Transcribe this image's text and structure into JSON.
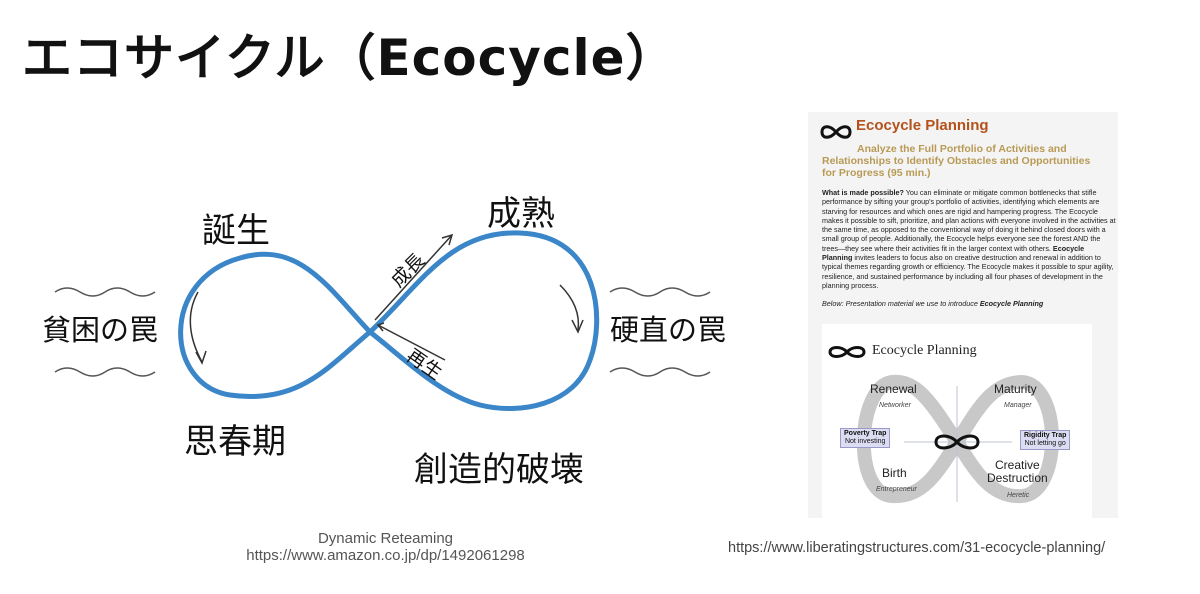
{
  "slide": {
    "title": "エコサイクル（Ecocycle）"
  },
  "diagram": {
    "loop_color": "#3a86c8",
    "labels": {
      "birth": "誕生",
      "maturity": "成熟",
      "poverty_trap": "貧困の罠",
      "rigidity_trap": "硬直の罠",
      "adolescence": "思春期",
      "creative_destruction": "創造的破壊",
      "growth": "成長",
      "renewal": "再生"
    },
    "source": {
      "title": "Dynamic Reteaming",
      "url": "https://www.amazon.co.jp/dp/1492061298"
    }
  },
  "reference": {
    "title": "Ecocycle Planning",
    "subtitle_lines": [
      "Analyze the Full Portfolio of Activities and",
      "Relationships to Identify Obstacles and Opportunities",
      "for Progress (95 min.)"
    ],
    "body_lead": "What is made possible?",
    "body_1": " You can eliminate or mitigate common bottlenecks that stifle performance by sifting your group's portfolio of activities, identifying which elements are starving for resources and which ones are rigid and hampering progress. The Ecocycle makes it possible to sift, prioritize, and plan actions with everyone involved in the activities at the same time, as opposed to the conventional way of doing it behind closed doors with a small group of people. Additionally, the Ecocycle helps everyone see the forest AND the trees—they see where their activities fit in the larger context with others. ",
    "body_bold": "Ecocycle Planning",
    "body_2": " invites leaders to focus also on creative destruction and renewal in addition to typical themes regarding growth or efficiency. The Ecocycle makes it possible to spur agility, resilience, and sustained performance by including all four phases of development in the planning process.",
    "note_prefix": "Below: Presentation material we use to introduce ",
    "note_bold": "Ecocycle Planning",
    "figure": {
      "title": "Ecocycle Planning",
      "renewal": "Renewal",
      "renewal_role": "Networker",
      "maturity": "Maturity",
      "maturity_role": "Manager",
      "birth": "Birth",
      "birth_role": "Entrepreneur",
      "creative_destruction_1": "Creative",
      "creative_destruction_2": "Destruction",
      "creative_destruction_role": "Heretic",
      "poverty_trap": "Poverty Trap",
      "poverty_trap_sub": "Not investing",
      "rigidity_trap": "Rigidity Trap",
      "rigidity_trap_sub": "Not letting go"
    },
    "url": "https://www.liberatingstructures.com/31-ecocycle-planning/"
  }
}
